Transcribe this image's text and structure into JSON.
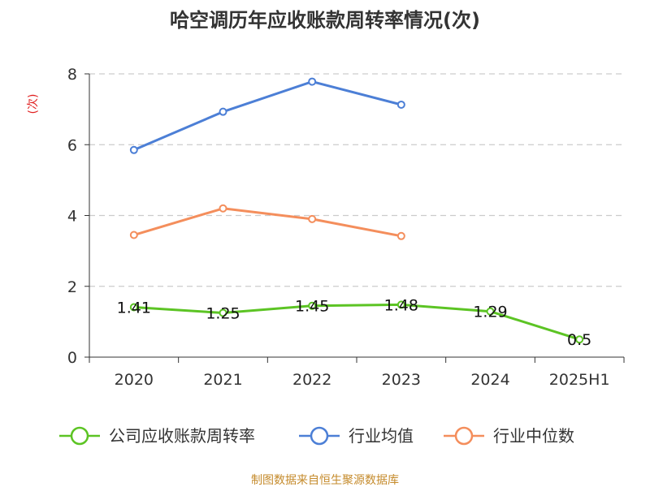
{
  "chart_data": {
    "type": "line",
    "title": "哈空调历年应收账款周转率情况(次)",
    "ylabel": "(次)",
    "categories": [
      "2020",
      "2021",
      "2022",
      "2023",
      "2024",
      "2025H1"
    ],
    "ylim": [
      0,
      8
    ],
    "yticks": [
      0,
      2,
      4,
      6,
      8
    ],
    "grid": true,
    "legend_position": "bottom",
    "series": [
      {
        "name": "公司应收账款周转率",
        "color": "#5cc424",
        "values": [
          1.41,
          1.25,
          1.45,
          1.48,
          1.29,
          0.5
        ],
        "labels": [
          "1.41",
          "1.25",
          "1.45",
          "1.48",
          "1.29",
          "0.5"
        ]
      },
      {
        "name": "行业均值",
        "color": "#4c7fd6",
        "values": [
          5.85,
          6.93,
          7.78,
          7.13,
          null,
          null
        ]
      },
      {
        "name": "行业中位数",
        "color": "#f48e5c",
        "values": [
          3.45,
          4.2,
          3.9,
          3.42,
          null,
          null
        ]
      }
    ],
    "unit_color": "#e02020"
  },
  "footer": {
    "source": "制图数据来自恒生聚源数据库",
    "color": "#c58b2c"
  }
}
